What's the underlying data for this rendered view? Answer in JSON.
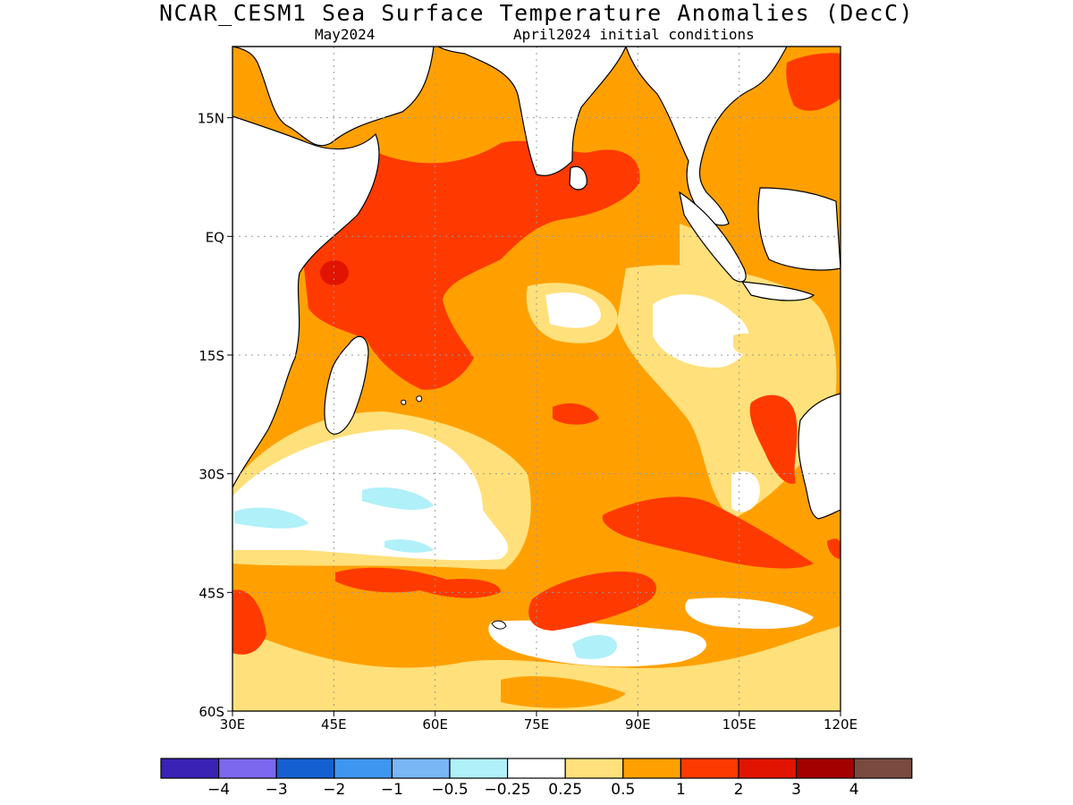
{
  "title": "NCAR_CESM1 Sea Surface Temperature Anomalies (DecC)",
  "subtitle_left": "May2024",
  "subtitle_right": "April2024 initial conditions",
  "map": {
    "lon_range": [
      30,
      120
    ],
    "lat_range": [
      -60,
      24
    ],
    "lon_ticks": [
      {
        "value": 30,
        "label": "30E"
      },
      {
        "value": 45,
        "label": "45E"
      },
      {
        "value": 60,
        "label": "60E"
      },
      {
        "value": 75,
        "label": "75E"
      },
      {
        "value": 90,
        "label": "90E"
      },
      {
        "value": 105,
        "label": "105E"
      },
      {
        "value": 120,
        "label": "120E"
      }
    ],
    "lat_ticks": [
      {
        "value": 15,
        "label": "15N"
      },
      {
        "value": 0,
        "label": "EQ"
      },
      {
        "value": -15,
        "label": "15S"
      },
      {
        "value": -30,
        "label": "30S"
      },
      {
        "value": -45,
        "label": "45S"
      },
      {
        "value": -60,
        "label": "60S"
      }
    ],
    "grid": true
  },
  "colorbar": {
    "colors": [
      "#3a22b4",
      "#7b68ee",
      "#1560d0",
      "#3f96f0",
      "#78b6f4",
      "#b0f0f8",
      "#ffffff",
      "#ffe07a",
      "#ffa000",
      "#ff3a00",
      "#e01400",
      "#a50000",
      "#7a4a40"
    ],
    "labels": [
      "-4",
      "-3",
      "-2",
      "-1",
      "-0.5",
      "-0.25",
      "0.25",
      "0.5",
      "1",
      "2",
      "3",
      "4"
    ]
  }
}
